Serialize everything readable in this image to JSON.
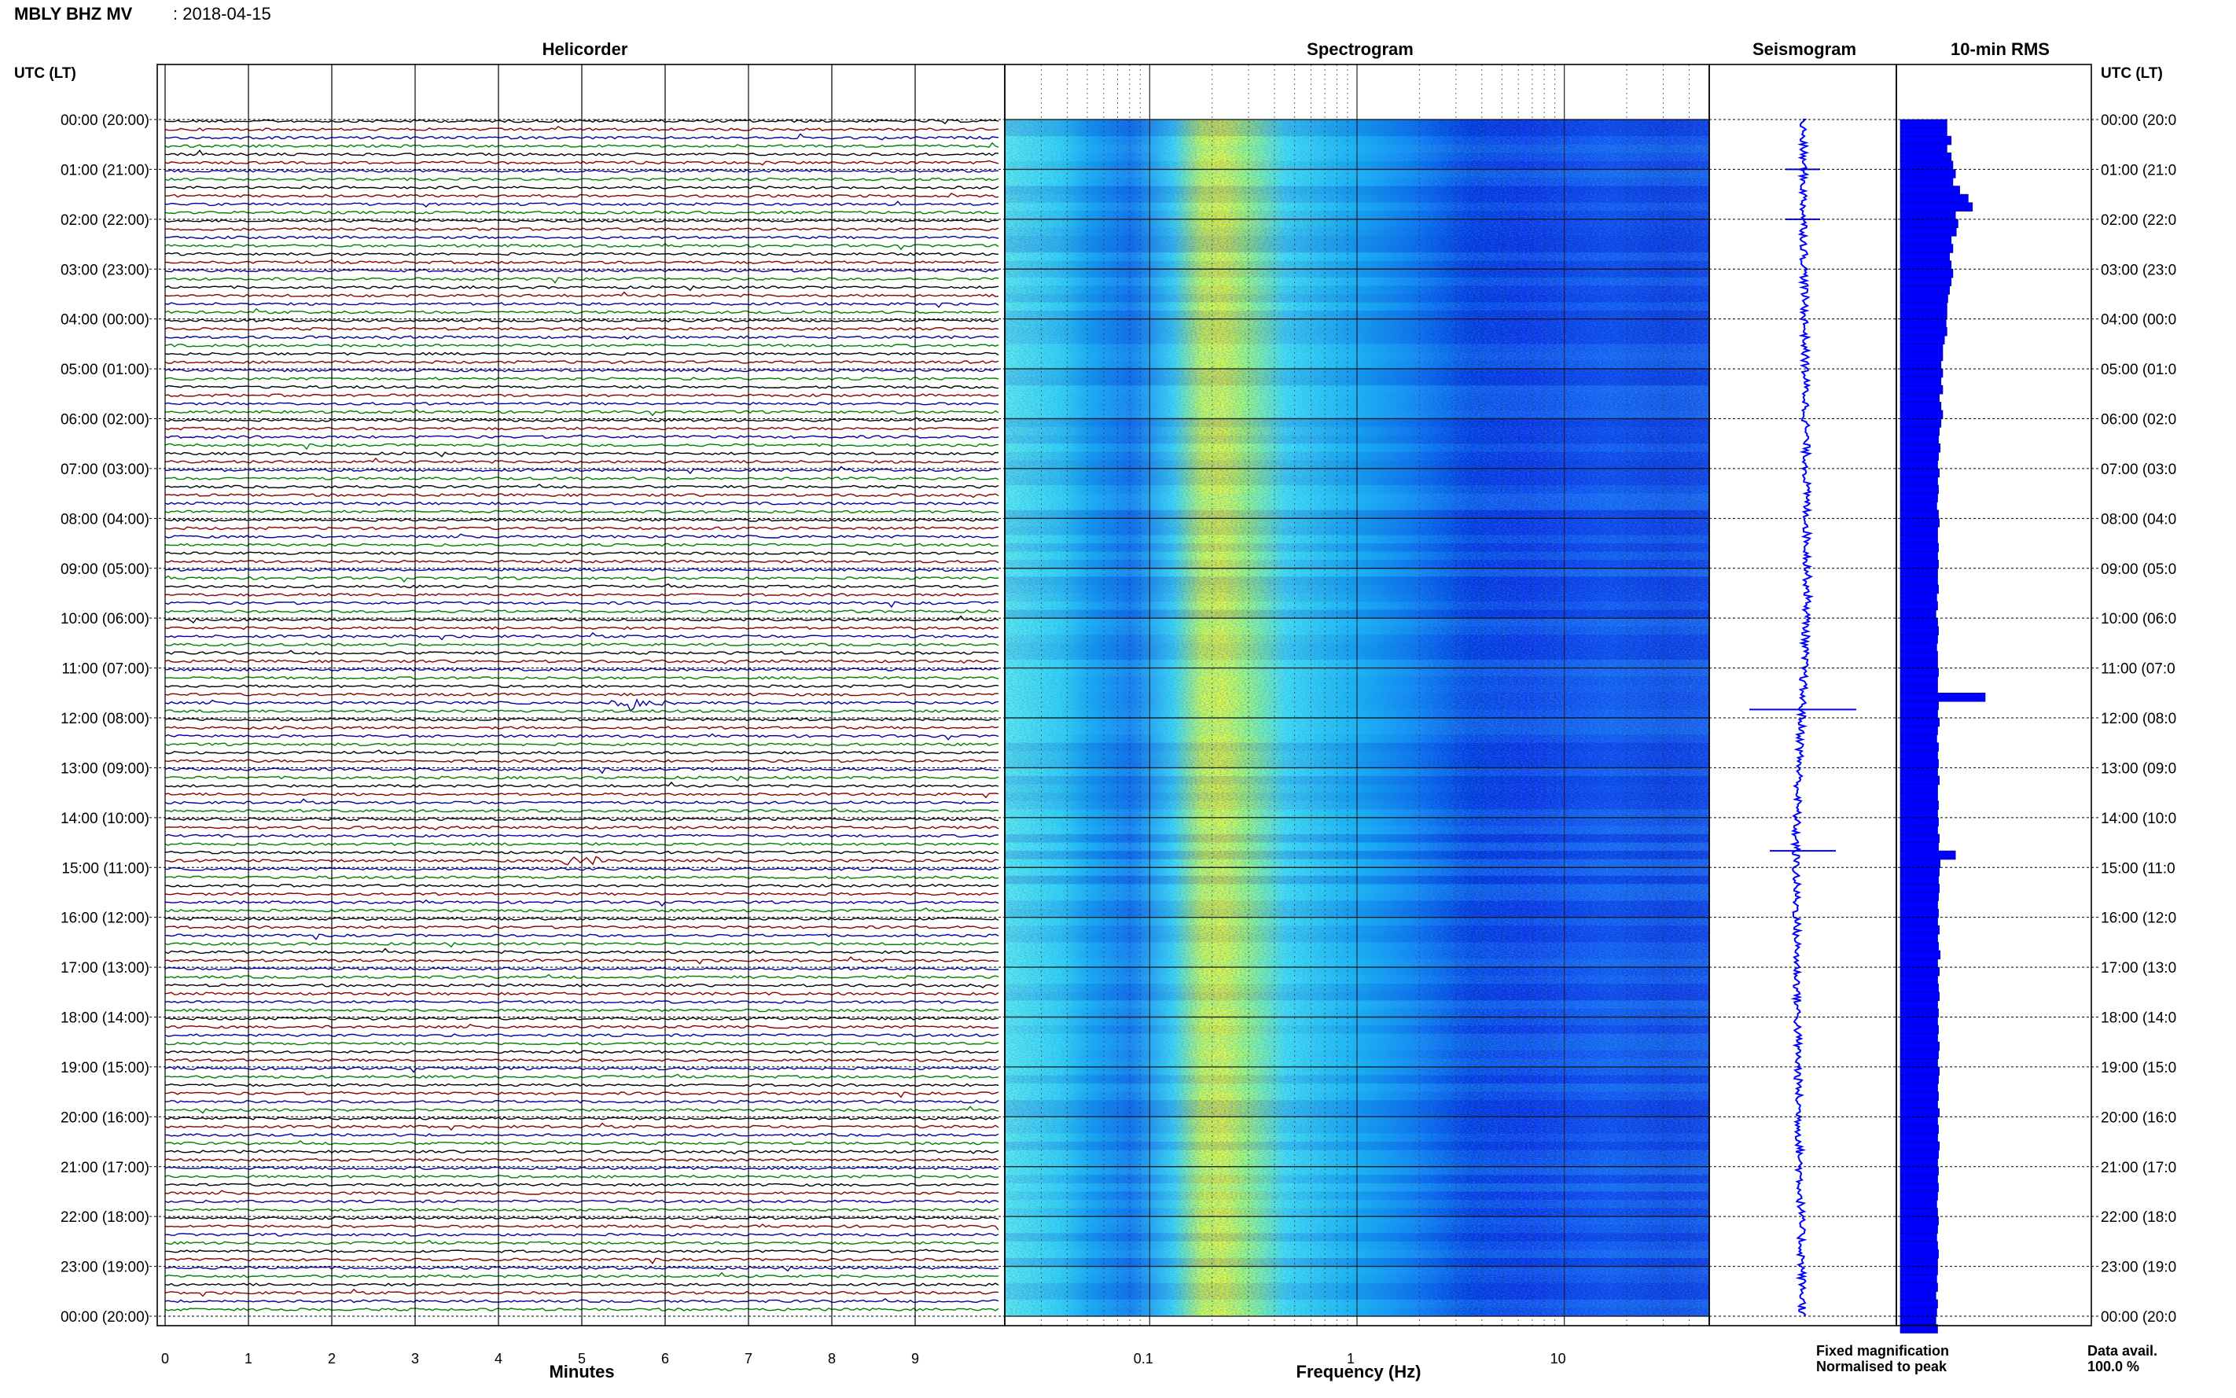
{
  "header": {
    "station": "MBLY BHZ MV",
    "date": "2018-04-15"
  },
  "panels": {
    "helicorder_title": "Helicorder",
    "spectrogram_title": "Spectrogram",
    "seismogram_title": "Seismogram",
    "rms_title": "10-min RMS"
  },
  "axes": {
    "left_label": "UTC (LT)",
    "right_label": "UTC (LT)",
    "minutes_label": "Minutes",
    "frequency_label": "Frequency (Hz)",
    "time_ticks": [
      "00:00 (20:00)",
      "01:00 (21:00)",
      "02:00 (22:00)",
      "03:00 (23:00)",
      "04:00 (00:00)",
      "05:00 (01:00)",
      "06:00 (02:00)",
      "07:00 (03:00)",
      "08:00 (04:00)",
      "09:00 (05:00)",
      "10:00 (06:00)",
      "11:00 (07:00)",
      "12:00 (08:00)",
      "13:00 (09:00)",
      "14:00 (10:00)",
      "15:00 (11:00)",
      "16:00 (12:00)",
      "17:00 (13:00)",
      "18:00 (14:00)",
      "19:00 (15:00)",
      "20:00 (16:00)",
      "21:00 (17:00)",
      "22:00 (18:00)",
      "23:00 (19:00)",
      "00:00 (20:00)"
    ],
    "right_time_ticks": [
      "00:00 (20:0",
      "01:00 (21:0",
      "02:00 (22:0",
      "03:00 (23:0",
      "04:00 (00:0",
      "05:00 (01:0",
      "06:00 (02:0",
      "07:00 (03:0",
      "08:00 (04:0",
      "09:00 (05:0",
      "10:00 (06:0",
      "11:00 (07:0",
      "12:00 (08:0",
      "13:00 (09:0",
      "14:00 (10:0",
      "15:00 (11:0",
      "16:00 (12:0",
      "17:00 (13:0",
      "18:00 (14:0",
      "19:00 (15:0",
      "20:00 (16:0",
      "21:00 (17:0",
      "22:00 (18:0",
      "23:00 (19:0",
      "00:00 (20:0"
    ],
    "minute_ticks": [
      "0",
      "1",
      "2",
      "3",
      "4",
      "5",
      "6",
      "7",
      "8",
      "9"
    ],
    "freq_ticks": [
      "0.1",
      "1",
      "10"
    ]
  },
  "legend": {
    "fixed": "Fixed magnification",
    "normalised": "Normalised to peak",
    "fixed_color": "#0000ff",
    "normalised_color": "#ff0000"
  },
  "data_availability": {
    "label": "Data avail.",
    "value": "100.0 %"
  },
  "colors": {
    "trace_cycle": [
      "#000000",
      "#8b0000",
      "#0000a0",
      "#008000"
    ],
    "rms_fill": "#0000ff",
    "seismogram": "#0000ff"
  },
  "chart_data": [
    {
      "type": "line",
      "title": "Helicorder",
      "xlabel": "Minutes",
      "xlim": [
        0,
        10
      ],
      "lines_per_hour": 6,
      "events": [
        {
          "time_utc": "11:40",
          "minute": 5.6,
          "amplitude": "large"
        },
        {
          "time_utc": "14:50",
          "minute": 5.0,
          "amplitude": "large"
        }
      ]
    },
    {
      "type": "heatmap",
      "title": "Spectrogram",
      "xlabel": "Frequency (Hz)",
      "xscale": "log",
      "xlim": [
        0.02,
        50
      ],
      "colormap": [
        "#00c8ff",
        "#ccff33",
        "#0090ff",
        "#0010d0"
      ]
    },
    {
      "type": "line",
      "title": "Seismogram",
      "x_drift": [
        0,
        0.25,
        0.5,
        -0.75,
        -0.5,
        0
      ],
      "spikes_utc": [
        "01:00",
        "02:00",
        "11:50",
        "14:40"
      ]
    },
    {
      "type": "bar",
      "title": "10-min RMS",
      "orientation": "horizontal",
      "values": [
        0.55,
        0.55,
        0.6,
        0.55,
        0.6,
        0.62,
        0.65,
        0.62,
        0.7,
        0.8,
        0.85,
        0.65,
        0.68,
        0.66,
        0.6,
        0.62,
        0.58,
        0.6,
        0.62,
        0.6,
        0.58,
        0.56,
        0.55,
        0.55,
        0.54,
        0.55,
        0.52,
        0.5,
        0.5,
        0.48,
        0.5,
        0.48,
        0.5,
        0.46,
        0.48,
        0.5,
        0.48,
        0.46,
        0.45,
        0.47,
        0.45,
        0.44,
        0.46,
        0.44,
        0.45,
        0.44,
        0.43,
        0.45,
        0.46,
        0.44,
        0.44,
        0.45,
        0.44,
        0.45,
        0.44,
        0.44,
        0.45,
        0.43,
        0.44,
        0.42,
        0.44,
        0.45,
        0.44,
        0.43,
        0.44,
        0.44,
        0.45,
        0.44,
        0.44,
        1.0,
        0.45,
        0.44,
        0.46,
        0.44,
        0.43,
        0.45,
        0.44,
        0.45,
        0.44,
        0.46,
        0.44,
        0.44,
        0.45,
        0.44,
        0.45,
        0.44,
        0.46,
        0.45,
        0.65,
        0.47,
        0.46,
        0.45,
        0.46,
        0.45,
        0.44,
        0.45,
        0.44,
        0.46,
        0.44,
        0.45,
        0.47,
        0.44,
        0.46,
        0.44,
        0.45,
        0.46,
        0.44,
        0.45,
        0.44,
        0.45,
        0.44,
        0.46,
        0.45,
        0.44,
        0.46,
        0.45,
        0.44,
        0.45,
        0.44,
        0.46,
        0.44,
        0.45,
        0.44,
        0.46,
        0.45,
        0.44,
        0.45,
        0.44,
        0.45,
        0.44,
        0.43,
        0.44,
        0.45,
        0.44,
        0.43,
        0.44,
        0.45,
        0.44,
        0.44,
        0.43,
        0.44,
        0.42,
        0.44,
        0.43,
        0.42,
        0.44
      ]
    }
  ]
}
